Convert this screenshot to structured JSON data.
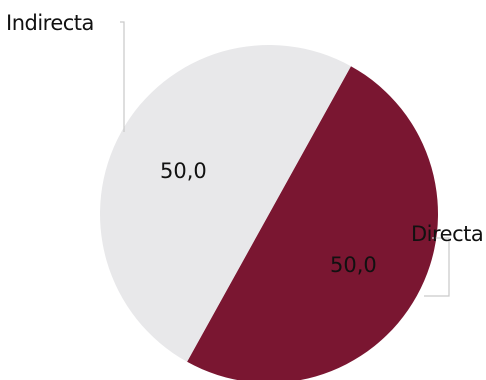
{
  "chart_data": {
    "type": "pie",
    "categories": [
      "Indirecta",
      "Directa"
    ],
    "values": [
      50.0,
      50.0
    ],
    "value_labels": [
      "50,0",
      "50,0"
    ],
    "colors": [
      "#e8e8ea",
      "#7a1631"
    ],
    "title": "",
    "legend": "none"
  }
}
